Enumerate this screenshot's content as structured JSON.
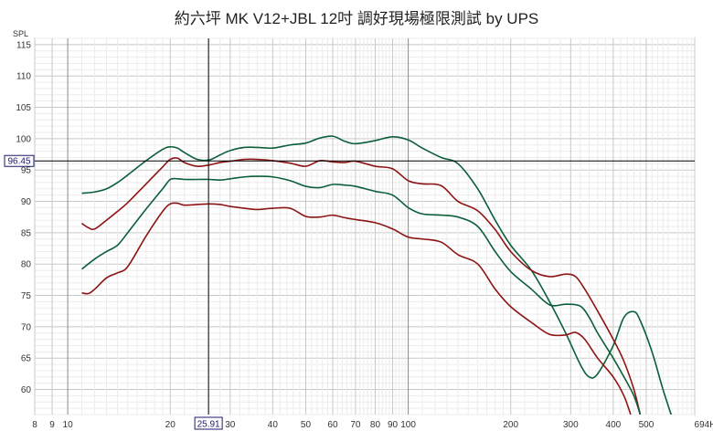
{
  "chart_data": {
    "type": "line",
    "title": "約六坪 MK V12+JBL 12吋 調好現場極限測試 by UPS",
    "ylabel": "SPL",
    "xlabel_unit": "Hz",
    "x_scale": "log",
    "xlim": [
      8,
      694
    ],
    "ylim": [
      56,
      116
    ],
    "grid": true,
    "x_ticks": [
      8,
      9,
      10,
      20,
      30,
      40,
      50,
      60,
      70,
      80,
      90,
      100,
      200,
      300,
      400,
      500,
      694
    ],
    "x_tick_labels": [
      "8",
      "9",
      "10",
      "20",
      "30",
      "40",
      "50",
      "60",
      "70",
      "80",
      "90",
      "100",
      "200",
      "300",
      "400",
      "500",
      "694Hz"
    ],
    "y_ticks": [
      60,
      65,
      70,
      75,
      80,
      85,
      90,
      95,
      100,
      105,
      110,
      115
    ],
    "cursor": {
      "x": 25.91,
      "y": 96.45,
      "x_label": "25.91",
      "y_label": "96.45"
    },
    "colors": {
      "green": "#0b5e3a",
      "red": "#8e1414",
      "cursor": "#000000",
      "grid": "#d9d9d9"
    },
    "series": [
      {
        "color": "#0b5e3a",
        "x": [
          11,
          12,
          13,
          14,
          15,
          17,
          19,
          20,
          21,
          22,
          24,
          26,
          28,
          30,
          33,
          36,
          40,
          45,
          50,
          55,
          60,
          65,
          70,
          80,
          90,
          100,
          110,
          125,
          140,
          160,
          180,
          200,
          230,
          260,
          290,
          320,
          340,
          360,
          400,
          430,
          460,
          480,
          520,
          560,
          600
        ],
        "y": [
          91.3,
          91.5,
          92.0,
          93.0,
          94.2,
          96.5,
          98.3,
          98.7,
          98.5,
          97.8,
          96.7,
          96.6,
          97.4,
          98.1,
          98.6,
          98.6,
          98.5,
          99.0,
          99.3,
          100.1,
          100.4,
          99.6,
          99.2,
          99.7,
          100.3,
          99.8,
          98.5,
          97.0,
          96.0,
          92.0,
          87.0,
          83.0,
          79.0,
          74.0,
          69.0,
          64.0,
          62.0,
          62.5,
          67.0,
          71.5,
          72.4,
          71.0,
          66.0,
          60.0,
          55.0
        ]
      },
      {
        "color": "#8e1414",
        "x": [
          11,
          11.5,
          12,
          13,
          14,
          15,
          17,
          19,
          20,
          21,
          22,
          24,
          26,
          28,
          30,
          33,
          36,
          40,
          45,
          50,
          55,
          60,
          65,
          70,
          80,
          90,
          100,
          110,
          125,
          140,
          160,
          180,
          200,
          230,
          260,
          290,
          310,
          330,
          360,
          400,
          430,
          460,
          480
        ],
        "y": [
          86.5,
          85.8,
          85.6,
          87.0,
          88.4,
          89.8,
          92.8,
          95.5,
          96.7,
          96.9,
          96.2,
          95.6,
          95.8,
          96.2,
          96.4,
          96.7,
          96.7,
          96.5,
          96.1,
          95.6,
          96.5,
          96.3,
          96.2,
          96.4,
          95.6,
          95.2,
          93.3,
          92.8,
          92.5,
          90.0,
          88.5,
          85.5,
          82.0,
          79.0,
          78.0,
          78.4,
          78.0,
          76.0,
          72.5,
          68.0,
          64.5,
          60.0,
          56.0
        ]
      },
      {
        "color": "#0b5e3a",
        "x": [
          11,
          12,
          13,
          14,
          15,
          17,
          19,
          20,
          21,
          22,
          24,
          26,
          28,
          30,
          33,
          36,
          40,
          45,
          50,
          55,
          60,
          65,
          70,
          80,
          90,
          100,
          110,
          125,
          140,
          160,
          180,
          200,
          230,
          260,
          290,
          320,
          340,
          360,
          400,
          430,
          460,
          480
        ],
        "y": [
          79.2,
          80.8,
          82.0,
          83.0,
          85.0,
          88.8,
          92.0,
          93.5,
          93.6,
          93.5,
          93.5,
          93.5,
          93.4,
          93.6,
          93.9,
          94.0,
          93.9,
          93.3,
          92.4,
          92.2,
          92.7,
          92.6,
          92.4,
          91.6,
          91.0,
          89.0,
          88.0,
          87.8,
          87.5,
          86.0,
          82.0,
          78.8,
          76.0,
          73.5,
          73.6,
          73.3,
          71.5,
          69.0,
          65.0,
          62.0,
          59.0,
          56.0
        ]
      },
      {
        "color": "#8e1414",
        "x": [
          11,
          11.5,
          12,
          13,
          14,
          15,
          17,
          19,
          20,
          21,
          22,
          24,
          26,
          28,
          30,
          33,
          36,
          40,
          45,
          50,
          55,
          60,
          65,
          70,
          80,
          90,
          100,
          110,
          125,
          140,
          160,
          180,
          200,
          230,
          260,
          290,
          310,
          330,
          360,
          400,
          430,
          450
        ],
        "y": [
          75.4,
          75.3,
          76.0,
          77.8,
          78.6,
          79.6,
          84.5,
          88.4,
          89.6,
          89.7,
          89.4,
          89.5,
          89.6,
          89.5,
          89.2,
          88.9,
          88.7,
          88.9,
          88.9,
          87.6,
          87.5,
          87.8,
          87.4,
          87.1,
          86.6,
          85.6,
          84.3,
          84.0,
          83.5,
          81.5,
          80.0,
          76.0,
          73.2,
          70.7,
          68.8,
          68.7,
          69.1,
          68.0,
          65.0,
          62.0,
          59.0,
          56.0
        ]
      }
    ]
  }
}
